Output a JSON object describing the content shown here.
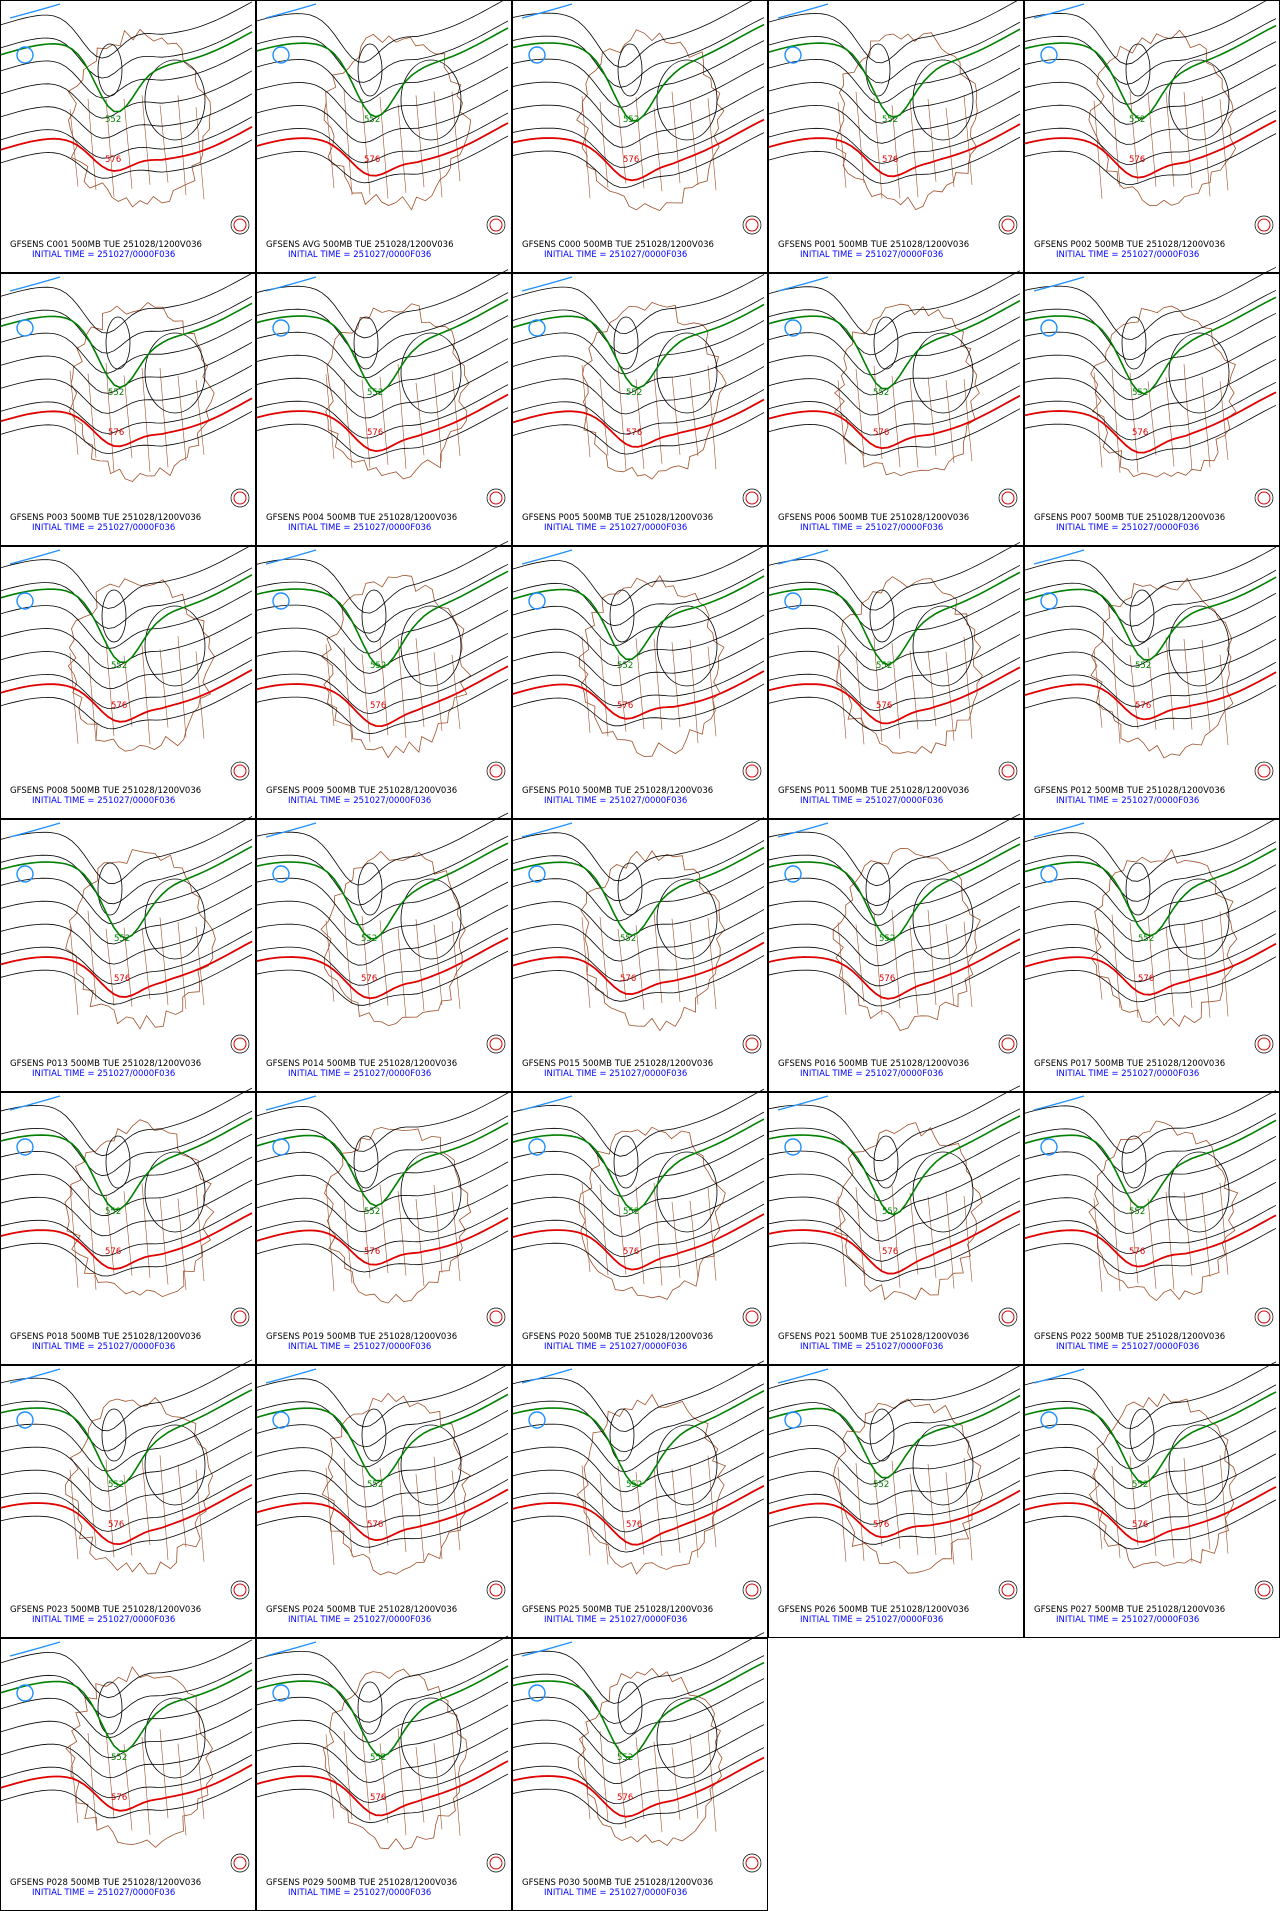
{
  "panels": [
    {
      "title": "GFSENS C001 500MB TUE 251028/1200V036",
      "init": "INITIAL TIME = 251027/0000F036",
      "contour_labels": [
        "552",
        "576"
      ]
    },
    {
      "title": "GFSENS AVG 500MB TUE 251028/1200V036",
      "init": "INITIAL TIME = 251027/0000F036",
      "contour_labels": [
        "552",
        "576"
      ]
    },
    {
      "title": "GFSENS C000 500MB TUE 251028/1200V036",
      "init": "INITIAL TIME = 251027/0000F036",
      "contour_labels": [
        "552",
        "576"
      ]
    },
    {
      "title": "GFSENS P001 500MB TUE 251028/1200V036",
      "init": "INITIAL TIME = 251027/0000F036",
      "contour_labels": [
        "552",
        "576"
      ]
    },
    {
      "title": "GFSENS P002 500MB TUE 251028/1200V036",
      "init": "INITIAL TIME = 251027/0000F036",
      "contour_labels": [
        "552",
        "576"
      ]
    },
    {
      "title": "GFSENS P003 500MB TUE 251028/1200V036",
      "init": "INITIAL TIME = 251027/0000F036",
      "contour_labels": [
        "552",
        "576"
      ]
    },
    {
      "title": "GFSENS P004 500MB TUE 251028/1200V036",
      "init": "INITIAL TIME = 251027/0000F036",
      "contour_labels": [
        "552",
        "576"
      ]
    },
    {
      "title": "GFSENS P005 500MB TUE 251028/1200V036",
      "init": "INITIAL TIME = 251027/0000F036",
      "contour_labels": [
        "552",
        "576"
      ]
    },
    {
      "title": "GFSENS P006 500MB TUE 251028/1200V036",
      "init": "INITIAL TIME = 251027/0000F036",
      "contour_labels": [
        "552",
        "576"
      ]
    },
    {
      "title": "GFSENS P007 500MB TUE 251028/1200V036",
      "init": "INITIAL TIME = 251027/0000F036",
      "contour_labels": [
        "552",
        "576"
      ]
    },
    {
      "title": "GFSENS P008 500MB TUE 251028/1200V036",
      "init": "INITIAL TIME = 251027/0000F036",
      "contour_labels": [
        "552",
        "576"
      ]
    },
    {
      "title": "GFSENS P009 500MB TUE 251028/1200V036",
      "init": "INITIAL TIME = 251027/0000F036",
      "contour_labels": [
        "552",
        "576"
      ]
    },
    {
      "title": "GFSENS P010 500MB TUE 251028/1200V036",
      "init": "INITIAL TIME = 251027/0000F036",
      "contour_labels": [
        "552",
        "576"
      ]
    },
    {
      "title": "GFSENS P011 500MB TUE 251028/1200V036",
      "init": "INITIAL TIME = 251027/0000F036",
      "contour_labels": [
        "552",
        "576"
      ]
    },
    {
      "title": "GFSENS P012 500MB TUE 251028/1200V036",
      "init": "INITIAL TIME = 251027/0000F036",
      "contour_labels": [
        "552",
        "576"
      ]
    },
    {
      "title": "GFSENS P013 500MB TUE 251028/1200V036",
      "init": "INITIAL TIME = 251027/0000F036",
      "contour_labels": [
        "552",
        "576"
      ]
    },
    {
      "title": "GFSENS P014 500MB TUE 251028/1200V036",
      "init": "INITIAL TIME = 251027/0000F036",
      "contour_labels": [
        "552",
        "576"
      ]
    },
    {
      "title": "GFSENS P015 500MB TUE 251028/1200V036",
      "init": "INITIAL TIME = 251027/0000F036",
      "contour_labels": [
        "552",
        "576"
      ]
    },
    {
      "title": "GFSENS P016 500MB TUE 251028/1200V036",
      "init": "INITIAL TIME = 251027/0000F036",
      "contour_labels": [
        "552",
        "576"
      ]
    },
    {
      "title": "GFSENS P017 500MB TUE 251028/1200V036",
      "init": "INITIAL TIME = 251027/0000F036",
      "contour_labels": [
        "552",
        "576"
      ]
    },
    {
      "title": "GFSENS P018 500MB TUE 251028/1200V036",
      "init": "INITIAL TIME = 251027/0000F036",
      "contour_labels": [
        "552",
        "576"
      ]
    },
    {
      "title": "GFSENS P019 500MB TUE 251028/1200V036",
      "init": "INITIAL TIME = 251027/0000F036",
      "contour_labels": [
        "552",
        "576"
      ]
    },
    {
      "title": "GFSENS P020 500MB TUE 251028/1200V036",
      "init": "INITIAL TIME = 251027/0000F036",
      "contour_labels": [
        "552",
        "576"
      ]
    },
    {
      "title": "GFSENS P021 500MB TUE 251028/1200V036",
      "init": "INITIAL TIME = 251027/0000F036",
      "contour_labels": [
        "552",
        "576"
      ]
    },
    {
      "title": "GFSENS P022 500MB TUE 251028/1200V036",
      "init": "INITIAL TIME = 251027/0000F036",
      "contour_labels": [
        "552",
        "576"
      ]
    },
    {
      "title": "GFSENS P023 500MB TUE 251028/1200V036",
      "init": "INITIAL TIME = 251027/0000F036",
      "contour_labels": [
        "552",
        "576"
      ]
    },
    {
      "title": "GFSENS P024 500MB TUE 251028/1200V036",
      "init": "INITIAL TIME = 251027/0000F036",
      "contour_labels": [
        "552",
        "576"
      ]
    },
    {
      "title": "GFSENS P025 500MB TUE 251028/1200V036",
      "init": "INITIAL TIME = 251027/0000F036",
      "contour_labels": [
        "552",
        "576"
      ]
    },
    {
      "title": "GFSENS P026 500MB TUE 251028/1200V036",
      "init": "INITIAL TIME = 251027/0000F036",
      "contour_labels": [
        "552",
        "576"
      ]
    },
    {
      "title": "GFSENS P027 500MB TUE 251028/1200V036",
      "init": "INITIAL TIME = 251027/0000F036",
      "contour_labels": [
        "552",
        "576"
      ]
    },
    {
      "title": "GFSENS P028 500MB TUE 251028/1200V036",
      "init": "INITIAL TIME = 251027/0000F036",
      "contour_labels": [
        "552",
        "576"
      ]
    },
    {
      "title": "GFSENS P029 500MB TUE 251028/1200V036",
      "init": "INITIAL TIME = 251027/0000F036",
      "contour_labels": [
        "552",
        "576"
      ]
    },
    {
      "title": "GFSENS P030 500MB TUE 251028/1200V036",
      "init": "INITIAL TIME = 251027/0000F036",
      "contour_labels": [
        "552",
        "576"
      ]
    }
  ]
}
